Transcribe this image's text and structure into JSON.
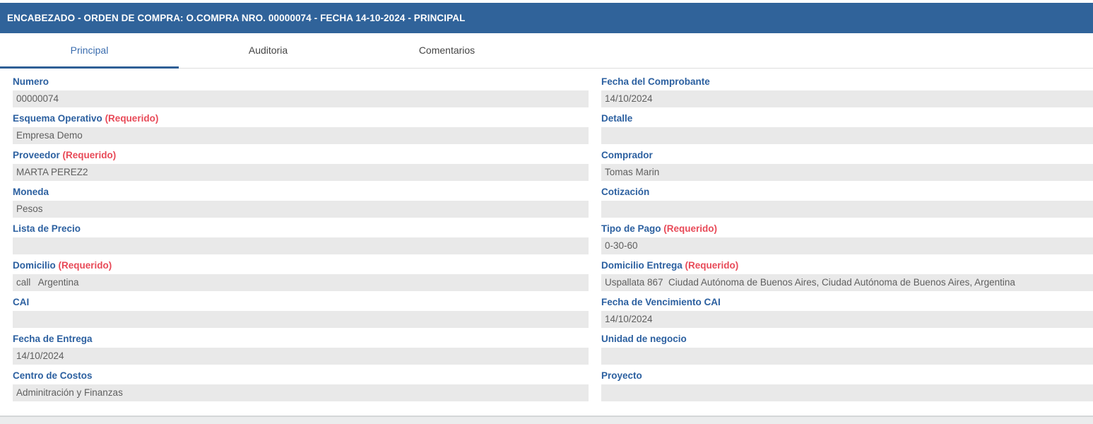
{
  "header": {
    "title": "ENCABEZADO - ORDEN DE COMPRA: O.COMPRA NRO. 00000074 - FECHA 14-10-2024 - PRINCIPAL"
  },
  "tabs": [
    {
      "id": "principal",
      "label": "Principal",
      "active": true
    },
    {
      "id": "auditoria",
      "label": "Auditoria",
      "active": false
    },
    {
      "id": "comentarios",
      "label": "Comentarios",
      "active": false
    }
  ],
  "required_suffix": "(Requerido)",
  "colors": {
    "titlebar_blue": "#30639a",
    "label_blue": "#2c60a0",
    "active_tab_blue": "#3a6cae",
    "required_red": "#e84a58",
    "field_bg": "#e9e9e9"
  },
  "form": {
    "left_column": [
      {
        "id": "numero",
        "label": "Numero",
        "required": false,
        "value": "00000074"
      },
      {
        "id": "esquema-operativo",
        "label": "Esquema Operativo",
        "required": true,
        "value": "Empresa Demo"
      },
      {
        "id": "proveedor",
        "label": "Proveedor",
        "required": true,
        "value": "MARTA PEREZ2"
      },
      {
        "id": "moneda",
        "label": "Moneda",
        "required": false,
        "value": "Pesos"
      },
      {
        "id": "lista-de-precio",
        "label": "Lista de Precio",
        "required": false,
        "value": ""
      },
      {
        "id": "domicilio",
        "label": "Domicilio",
        "required": true,
        "value": "call   Argentina"
      },
      {
        "id": "cai",
        "label": "CAI",
        "required": false,
        "value": ""
      },
      {
        "id": "fecha-de-entrega",
        "label": "Fecha de Entrega",
        "required": false,
        "value": "14/10/2024"
      },
      {
        "id": "centro-de-costos",
        "label": "Centro de Costos",
        "required": false,
        "value": "Adminitración y Finanzas"
      }
    ],
    "right_column": [
      {
        "id": "fecha-del-comprobante",
        "label": "Fecha del Comprobante",
        "required": false,
        "value": "14/10/2024"
      },
      {
        "id": "detalle",
        "label": "Detalle",
        "required": false,
        "value": ""
      },
      {
        "id": "comprador",
        "label": "Comprador",
        "required": false,
        "value": "Tomas Marin"
      },
      {
        "id": "cotizacion",
        "label": "Cotización",
        "required": false,
        "value": ""
      },
      {
        "id": "tipo-de-pago",
        "label": "Tipo de Pago",
        "required": true,
        "value": "0-30-60"
      },
      {
        "id": "domicilio-entrega",
        "label": "Domicilio Entrega",
        "required": true,
        "value": "Uspallata 867  Ciudad Autónoma de Buenos Aires, Ciudad Autónoma de Buenos Aires, Argentina"
      },
      {
        "id": "fecha-de-vencimiento-cai",
        "label": "Fecha de Vencimiento CAI",
        "required": false,
        "value": "14/10/2024"
      },
      {
        "id": "unidad-de-negocio",
        "label": "Unidad de negocio",
        "required": false,
        "value": ""
      },
      {
        "id": "proyecto",
        "label": "Proyecto",
        "required": false,
        "value": ""
      }
    ]
  }
}
